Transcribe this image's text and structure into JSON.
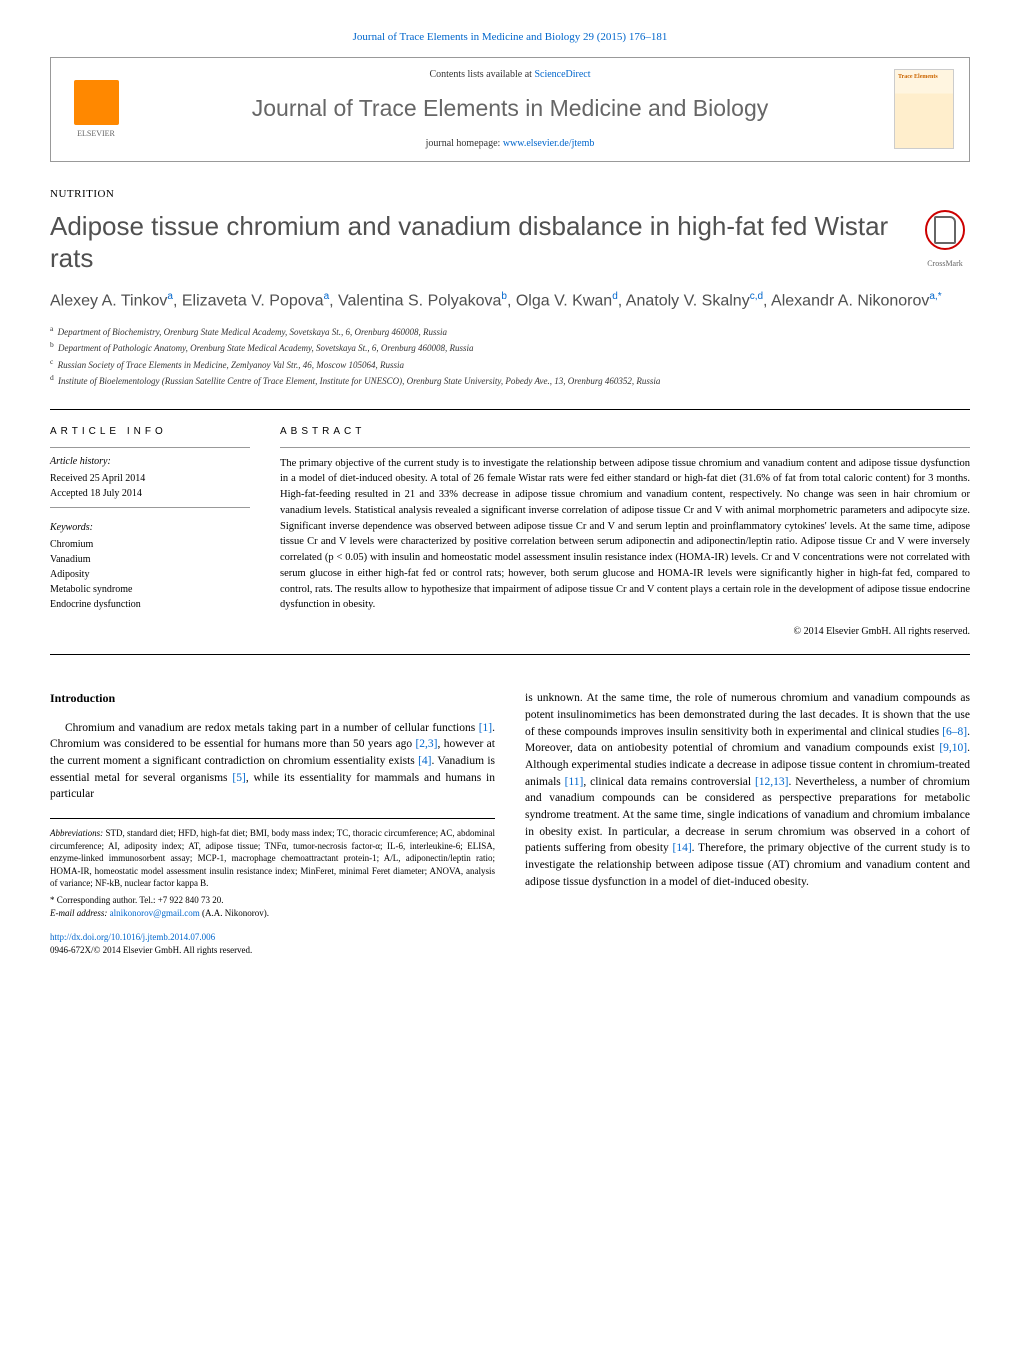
{
  "journal_ref": "Journal of Trace Elements in Medicine and Biology 29 (2015) 176–181",
  "header": {
    "contents_prefix": "Contents lists available at ",
    "contents_link": "ScienceDirect",
    "journal_title": "Journal of Trace Elements in Medicine and Biology",
    "homepage_prefix": "journal homepage: ",
    "homepage_link": "www.elsevier.de/jtemb",
    "publisher": "ELSEVIER",
    "cover_label": "Trace Elements"
  },
  "section_label": "NUTRITION",
  "title": "Adipose tissue chromium and vanadium disbalance in high-fat fed Wistar rats",
  "crossmark": "CrossMark",
  "authors_html": "Alexey A. Tinkov<sup>a</sup>, Elizaveta V. Popova<sup>a</sup>, Valentina S. Polyakova<sup>b</sup>, Olga V. Kwan<sup>d</sup>, Anatoly V. Skalny<sup>c,d</sup>, Alexandr A. Nikonorov<sup>a,*</sup>",
  "affiliations": [
    {
      "sup": "a",
      "text": "Department of Biochemistry, Orenburg State Medical Academy, Sovetskaya St., 6, Orenburg 460008, Russia"
    },
    {
      "sup": "b",
      "text": "Department of Pathologic Anatomy, Orenburg State Medical Academy, Sovetskaya St., 6, Orenburg 460008, Russia"
    },
    {
      "sup": "c",
      "text": "Russian Society of Trace Elements in Medicine, Zemlyanoy Val Str., 46, Moscow 105064, Russia"
    },
    {
      "sup": "d",
      "text": "Institute of Bioelementology (Russian Satellite Centre of Trace Element, Institute for UNESCO), Orenburg State University, Pobedy Ave., 13, Orenburg 460352, Russia"
    }
  ],
  "article_info": {
    "heading": "ARTICLE INFO",
    "history_label": "Article history:",
    "received": "Received 25 April 2014",
    "accepted": "Accepted 18 July 2014",
    "keywords_label": "Keywords:",
    "keywords": [
      "Chromium",
      "Vanadium",
      "Adiposity",
      "Metabolic syndrome",
      "Endocrine dysfunction"
    ]
  },
  "abstract": {
    "heading": "ABSTRACT",
    "text": "The primary objective of the current study is to investigate the relationship between adipose tissue chromium and vanadium content and adipose tissue dysfunction in a model of diet-induced obesity. A total of 26 female Wistar rats were fed either standard or high-fat diet (31.6% of fat from total caloric content) for 3 months. High-fat-feeding resulted in 21 and 33% decrease in adipose tissue chromium and vanadium content, respectively. No change was seen in hair chromium or vanadium levels. Statistical analysis revealed a significant inverse correlation of adipose tissue Cr and V with animal morphometric parameters and adipocyte size. Significant inverse dependence was observed between adipose tissue Cr and V and serum leptin and proinflammatory cytokines' levels. At the same time, adipose tissue Cr and V levels were characterized by positive correlation between serum adiponectin and adiponectin/leptin ratio. Adipose tissue Cr and V were inversely correlated (p < 0.05) with insulin and homeostatic model assessment insulin resistance index (HOMA-IR) levels. Cr and V concentrations were not correlated with serum glucose in either high-fat fed or control rats; however, both serum glucose and HOMA-IR levels were significantly higher in high-fat fed, compared to control, rats. The results allow to hypothesize that impairment of adipose tissue Cr and V content plays a certain role in the development of adipose tissue endocrine dysfunction in obesity.",
    "copyright": "© 2014 Elsevier GmbH. All rights reserved."
  },
  "body": {
    "intro_heading": "Introduction",
    "col1_para": "Chromium and vanadium are redox metals taking part in a number of cellular functions [1]. Chromium was considered to be essential for humans more than 50 years ago [2,3], however at the current moment a significant contradiction on chromium essentiality exists [4]. Vanadium is essential metal for several organisms [5], while its essentiality for mammals and humans in particular",
    "col2_para": "is unknown. At the same time, the role of numerous chromium and vanadium compounds as potent insulinomimetics has been demonstrated during the last decades. It is shown that the use of these compounds improves insulin sensitivity both in experimental and clinical studies [6–8]. Moreover, data on antiobesity potential of chromium and vanadium compounds exist [9,10]. Although experimental studies indicate a decrease in adipose tissue content in chromium-treated animals [11], clinical data remains controversial [12,13]. Nevertheless, a number of chromium and vanadium compounds can be considered as perspective preparations for metabolic syndrome treatment. At the same time, single indications of vanadium and chromium imbalance in obesity exist. In particular, a decrease in serum chromium was observed in a cohort of patients suffering from obesity [14]. Therefore, the primary objective of the current study is to investigate the relationship between adipose tissue (AT) chromium and vanadium content and adipose tissue dysfunction in a model of diet-induced obesity."
  },
  "footer": {
    "abbrev_label": "Abbreviations:",
    "abbrev_text": " STD, standard diet; HFD, high-fat diet; BMI, body mass index; TC, thoracic circumference; AC, abdominal circumference; AI, adiposity index; AT, adipose tissue; TNFα, tumor-necrosis factor-α; IL-6, interleukine-6; ELISA, enzyme-linked immunosorbent assay; MCP-1, macrophage chemoattractant protein-1; A/L, adiponectin/leptin ratio; HOMA-IR, homeostatic model assessment insulin resistance index; MinFeret, minimal Feret diameter; ANOVA, analysis of variance; NF-kB, nuclear factor kappa B.",
    "corresp": "* Corresponding author. Tel.: +7 922 840 73 20.",
    "email_label": "E-mail address: ",
    "email": "alnikonorov@gmail.com",
    "email_suffix": " (A.A. Nikonorov).",
    "doi": "http://dx.doi.org/10.1016/j.jtemb.2014.07.006",
    "issn": "0946-672X/© 2014 Elsevier GmbH. All rights reserved."
  },
  "colors": {
    "link": "#0066cc",
    "title_gray": "#505050",
    "elsevier_orange": "#ff8800",
    "crossmark_red": "#cc0000"
  }
}
